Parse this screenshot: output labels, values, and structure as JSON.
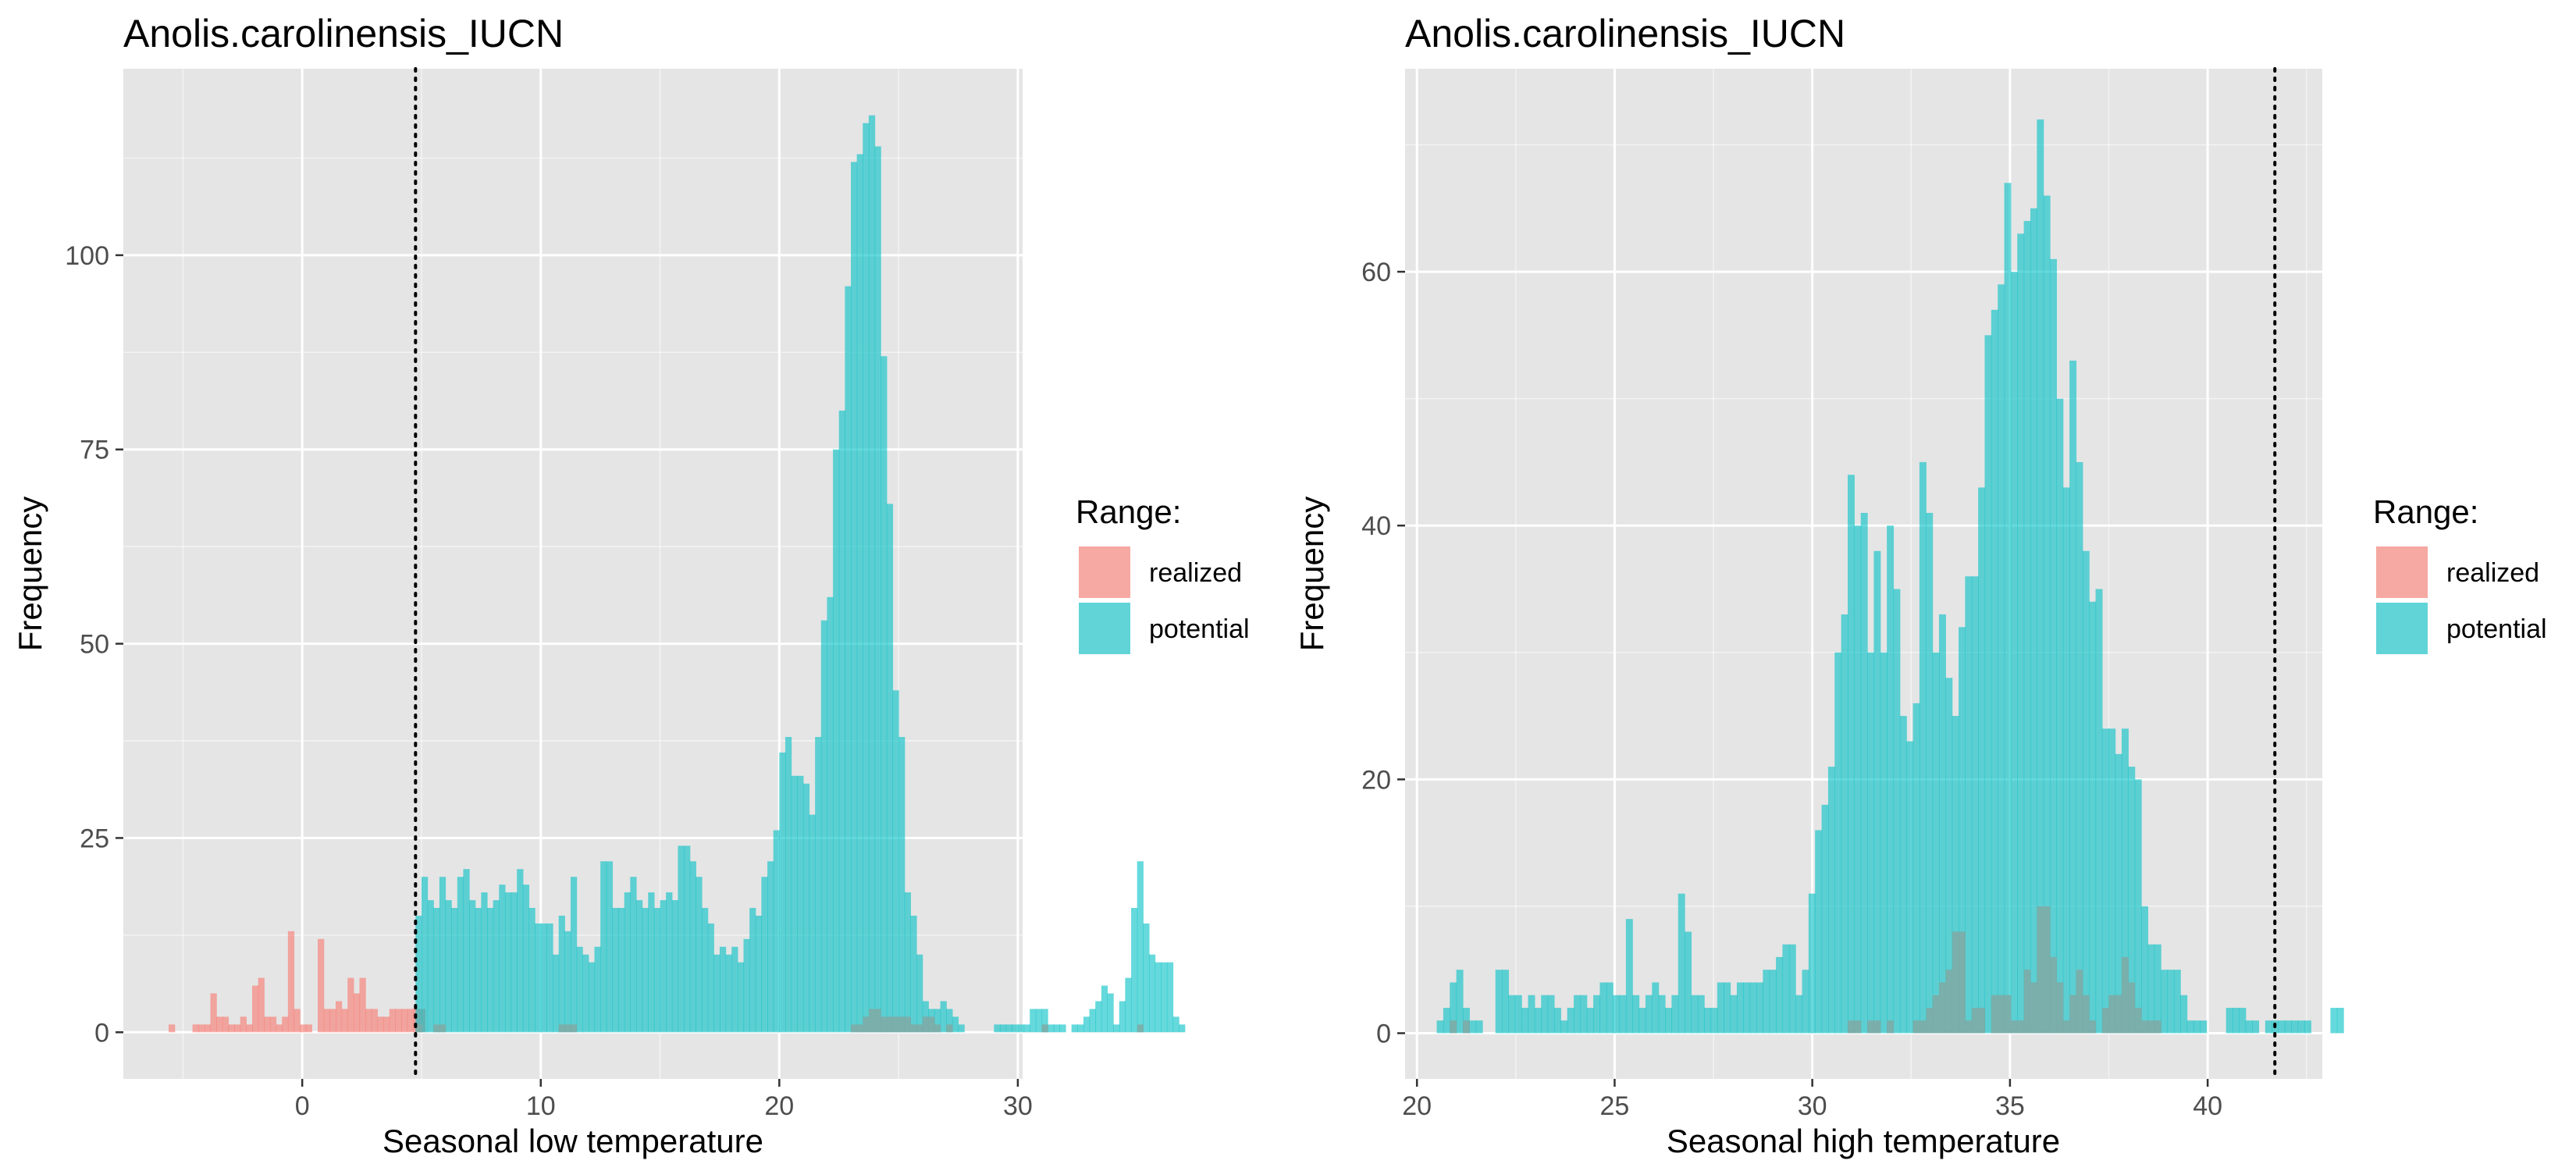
{
  "colors": {
    "panel_bg": "#E5E5E5",
    "grid": "#FFFFFF",
    "realized": "#F8766D",
    "potential": "#00BFC4",
    "overlap": "#7FA9A4",
    "vline": "#000000"
  },
  "chart_data": [
    {
      "type": "histogram",
      "title": "Anolis.carolinensis_IUCN",
      "xlabel": "Seasonal low temperature",
      "ylabel": "Frequency",
      "xlim": [
        -7.5,
        30.2
      ],
      "ylim": [
        -6,
        124
      ],
      "x_ticks": [
        0,
        10,
        20,
        30
      ],
      "y_ticks": [
        0,
        25,
        50,
        75,
        100
      ],
      "grid": true,
      "legend": {
        "title": "Range:",
        "position": "right",
        "entries": [
          "realized",
          "potential"
        ]
      },
      "threshold_line": 4.75,
      "bin_width": 0.25,
      "series": [
        {
          "name": "realized",
          "start": -5.6,
          "counts": [
            1,
            0,
            0,
            0,
            1,
            1,
            1,
            5,
            2,
            2,
            1,
            1,
            2,
            1,
            6,
            7,
            2,
            2,
            1,
            2,
            13,
            3,
            1,
            1,
            0,
            12,
            3,
            3,
            4,
            3,
            7,
            5,
            7,
            3,
            3,
            2,
            2,
            3,
            3,
            3,
            3,
            3,
            3
          ]
        },
        {
          "name": "potential",
          "start": 4.75,
          "counts": [
            15,
            20,
            17,
            16,
            20,
            17,
            16,
            20,
            21,
            17,
            16,
            18,
            16,
            17,
            19,
            18,
            18,
            21,
            19,
            16,
            14,
            14,
            14,
            10,
            15,
            13,
            20,
            11,
            10,
            9,
            11,
            22,
            22,
            16,
            16,
            18,
            20,
            17,
            16,
            18,
            16,
            17,
            18,
            17,
            24,
            24,
            22,
            20,
            16,
            14,
            10,
            11,
            10,
            11,
            9,
            12,
            16,
            15,
            20,
            22,
            26,
            36,
            38,
            33,
            33,
            32,
            28,
            38,
            53,
            56,
            75,
            80,
            96,
            112,
            113,
            117,
            118,
            114,
            87,
            68,
            44,
            38,
            18,
            15,
            10,
            4,
            3,
            3,
            4,
            3,
            2,
            1,
            0,
            0,
            0,
            0,
            0,
            1,
            1,
            1,
            1,
            1,
            1,
            3,
            3,
            3,
            1,
            1,
            1,
            0,
            1,
            1,
            2,
            3,
            4,
            6,
            5,
            1,
            4,
            7,
            16,
            22,
            14,
            10,
            9,
            9,
            9,
            2,
            1
          ]
        }
      ],
      "overlap": {
        "start": 4.75,
        "counts": [
          1,
          0,
          0,
          1,
          1,
          0,
          0,
          0,
          0,
          0,
          0,
          0,
          0,
          0,
          0,
          0,
          0,
          0,
          0,
          0,
          0,
          0,
          0,
          0,
          1,
          1,
          1,
          0,
          0,
          0,
          0,
          0,
          0,
          0,
          0,
          0,
          0,
          0,
          0,
          0,
          0,
          0,
          0,
          0,
          0,
          0,
          0,
          0,
          0,
          0,
          0,
          0,
          0,
          0,
          0,
          0,
          0,
          0,
          0,
          0,
          0,
          0,
          0,
          0,
          0,
          0,
          0,
          0,
          0,
          0,
          0,
          0,
          0,
          1,
          1,
          2,
          3,
          3,
          2,
          2,
          2,
          2,
          2,
          1,
          1,
          2,
          2,
          1,
          0,
          1,
          0,
          0,
          0,
          0,
          0,
          0,
          0,
          0,
          0,
          0,
          0,
          0,
          0,
          0,
          0,
          1,
          0,
          0,
          0,
          0,
          0,
          0,
          0,
          0,
          0,
          0,
          0,
          0,
          0,
          0,
          0,
          1,
          0,
          0,
          0,
          0,
          0,
          0,
          0,
          0,
          0,
          0,
          0,
          0
        ]
      }
    },
    {
      "type": "histogram",
      "title": "Anolis.carolinensis_IUCN",
      "xlabel": "Seasonal high temperature",
      "ylabel": "Frequency",
      "xlim": [
        19.7,
        42.9
      ],
      "ylim": [
        -3.6,
        76
      ],
      "x_ticks": [
        20,
        25,
        30,
        35,
        40
      ],
      "y_ticks": [
        0,
        20,
        40,
        60
      ],
      "grid": true,
      "legend": {
        "title": "Range:",
        "position": "right",
        "entries": [
          "realized",
          "potential"
        ]
      },
      "threshold_line": 41.7,
      "bin_width": 0.165,
      "series": [
        {
          "name": "realized",
          "start": 20.5,
          "counts": []
        },
        {
          "name": "potential",
          "start": 20.5,
          "counts": [
            1,
            2,
            4,
            5,
            2,
            1,
            1,
            0,
            0,
            5,
            5,
            3,
            3,
            2,
            3,
            2,
            3,
            3,
            2,
            1,
            2,
            3,
            3,
            2,
            3,
            4,
            4,
            3,
            3,
            9,
            3,
            2,
            3,
            4,
            3,
            2,
            3,
            11,
            8,
            3,
            3,
            2,
            2,
            4,
            4,
            3,
            4,
            4,
            4,
            4,
            5,
            5,
            6,
            7,
            7,
            3,
            5,
            11,
            16,
            18,
            21,
            30,
            33,
            44,
            40,
            41,
            30,
            38,
            30,
            40,
            35,
            25,
            23,
            26,
            45,
            41,
            30,
            33,
            28,
            25,
            32,
            36,
            36,
            43,
            55,
            57,
            59,
            67,
            60,
            63,
            64,
            65,
            72,
            66,
            61,
            50,
            43,
            53,
            45,
            38,
            34,
            35,
            24,
            24,
            22,
            24,
            21,
            20,
            10,
            7,
            7,
            5,
            5,
            5,
            3,
            1,
            1,
            1,
            0,
            0,
            0,
            2,
            2,
            2,
            1,
            1,
            0,
            1,
            1,
            1,
            1,
            1,
            1,
            1,
            0,
            0,
            0,
            2,
            2
          ]
        }
      ],
      "overlap": {
        "start": 20.5,
        "counts": [
          0,
          0,
          1,
          0,
          1,
          0,
          0,
          0,
          0,
          0,
          0,
          0,
          0,
          0,
          0,
          0,
          0,
          0,
          0,
          0,
          0,
          0,
          0,
          0,
          0,
          0,
          0,
          0,
          0,
          0,
          0,
          0,
          0,
          0,
          0,
          0,
          0,
          0,
          0,
          0,
          0,
          0,
          0,
          0,
          0,
          0,
          0,
          0,
          0,
          0,
          0,
          0,
          0,
          0,
          0,
          0,
          0,
          0,
          0,
          0,
          0,
          0,
          0,
          1,
          1,
          0,
          1,
          1,
          0,
          1,
          0,
          0,
          0,
          1,
          1,
          2,
          3,
          4,
          5,
          8,
          8,
          1,
          2,
          2,
          0,
          3,
          3,
          3,
          1,
          1,
          5,
          4,
          10,
          10,
          6,
          4,
          1,
          3,
          5,
          3,
          1,
          0,
          2,
          3,
          3,
          6,
          4,
          2,
          1,
          1,
          1,
          0,
          0,
          0,
          0,
          0,
          0,
          0,
          0,
          0,
          0,
          0,
          0,
          0,
          0,
          0,
          0,
          0,
          0,
          0,
          0,
          0,
          0,
          0,
          0,
          0,
          0,
          0,
          0
        ]
      }
    }
  ]
}
